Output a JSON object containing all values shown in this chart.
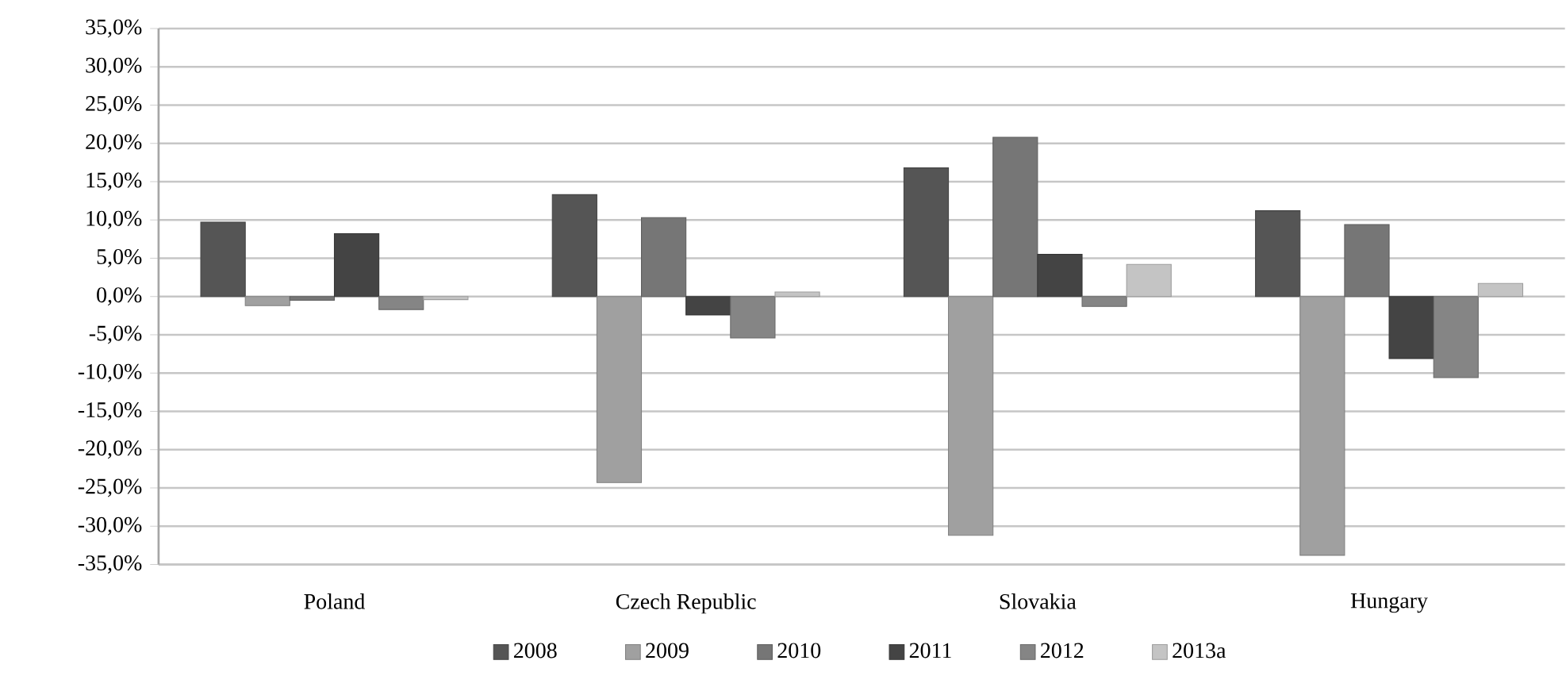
{
  "chart_data": {
    "type": "bar",
    "categories": [
      "Poland",
      "Czech Republic",
      "Slovakia",
      "Hungary"
    ],
    "series": [
      {
        "name": "2008",
        "color": "#555555",
        "values": [
          9.7,
          13.3,
          16.8,
          11.2
        ]
      },
      {
        "name": "2009",
        "color": "#a0a0a0",
        "values": [
          -1.2,
          -24.3,
          -31.2,
          -33.8
        ]
      },
      {
        "name": "2010",
        "color": "#767676",
        "values": [
          -0.5,
          10.3,
          20.8,
          9.4
        ]
      },
      {
        "name": "2011",
        "color": "#444444",
        "values": [
          8.2,
          -2.4,
          5.5,
          -8.1
        ]
      },
      {
        "name": "2012",
        "color": "#858585",
        "values": [
          -1.7,
          -5.4,
          -1.3,
          -10.6
        ]
      },
      {
        "name": "2013a",
        "color": "#c4c4c4",
        "values": [
          -0.4,
          0.6,
          4.2,
          1.7
        ]
      }
    ],
    "ylim": [
      -35,
      35
    ],
    "yticks": [
      {
        "value": -35,
        "label": "-35,0%"
      },
      {
        "value": -30,
        "label": "-30,0%"
      },
      {
        "value": -25,
        "label": "-25,0%"
      },
      {
        "value": -20,
        "label": "-20,0%"
      },
      {
        "value": -15,
        "label": "-15,0%"
      },
      {
        "value": -10,
        "label": "-10,0%"
      },
      {
        "value": -5,
        "label": "-5,0%"
      },
      {
        "value": 0,
        "label": "0,0%"
      },
      {
        "value": 5,
        "label": "5,0%"
      },
      {
        "value": 10,
        "label": "10,0%"
      },
      {
        "value": 15,
        "label": "15,0%"
      },
      {
        "value": 20,
        "label": "20,0%"
      },
      {
        "value": 25,
        "label": "25,0%"
      },
      {
        "value": 30,
        "label": "30,0%"
      },
      {
        "value": 35,
        "label": "35,0%"
      }
    ],
    "grid": "y",
    "legend": "bottom"
  }
}
